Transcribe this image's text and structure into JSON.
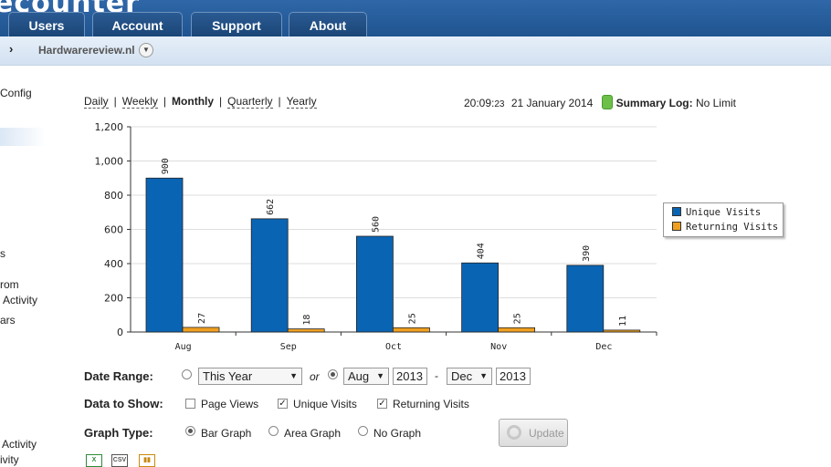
{
  "header": {
    "logo_text": "ecounter",
    "tabs": [
      {
        "label": "Users"
      },
      {
        "label": "Account"
      },
      {
        "label": "Support"
      },
      {
        "label": "About"
      }
    ]
  },
  "breadcrumb": {
    "arrow": "›",
    "site": "Hardwarereview.nl",
    "dropdown_icon": "chevron-down-icon"
  },
  "sidebar": {
    "items": [
      "Config",
      "s",
      "rom",
      "Activity",
      "ars",
      "Activity",
      "ivity"
    ]
  },
  "period": {
    "options": [
      {
        "label": "Daily",
        "active": false
      },
      {
        "label": "Weekly",
        "active": false
      },
      {
        "label": "Monthly",
        "active": true
      },
      {
        "label": "Quarterly",
        "active": false
      },
      {
        "label": "Yearly",
        "active": false
      }
    ],
    "separator": "|"
  },
  "status": {
    "time": "20:09:",
    "seconds": "23",
    "date": "21 January 2014",
    "log_label": "Summary Log:",
    "log_value": "No Limit",
    "log_icon": "database-icon"
  },
  "chart_data": {
    "type": "bar",
    "categories": [
      "Aug",
      "Sep",
      "Oct",
      "Nov",
      "Dec"
    ],
    "series": [
      {
        "name": "Unique Visits",
        "values": [
          900,
          662,
          560,
          404,
          390
        ],
        "color": "#0a64b4"
      },
      {
        "name": "Returning Visits",
        "values": [
          27,
          18,
          25,
          25,
          11
        ],
        "color": "#f0a020"
      }
    ],
    "yticks": [
      "0",
      "200",
      "400",
      "600",
      "800",
      "1,000",
      "1,200"
    ],
    "ylim": [
      0,
      1200
    ],
    "grid": true,
    "legend": "right"
  },
  "controls": {
    "date_range": {
      "label": "Date Range:",
      "preset": "This Year",
      "or": "or",
      "from_month": "Aug",
      "from_year": "2013",
      "dash": "-",
      "to_month": "Dec",
      "to_year": "2013",
      "selected": "custom"
    },
    "data_to_show": {
      "label": "Data to Show:",
      "options": [
        {
          "label": "Page Views",
          "checked": false
        },
        {
          "label": "Unique Visits",
          "checked": true
        },
        {
          "label": "Returning Visits",
          "checked": true
        }
      ]
    },
    "graph_type": {
      "label": "Graph Type:",
      "options": [
        {
          "label": "Bar Graph",
          "selected": true
        },
        {
          "label": "Area Graph",
          "selected": false
        },
        {
          "label": "No Graph",
          "selected": false
        }
      ]
    },
    "update_label": "Update"
  },
  "export": {
    "icons": [
      {
        "name": "excel-export-icon",
        "text": "X",
        "color": "#2e8b3a"
      },
      {
        "name": "csv-export-icon",
        "text": "CSV",
        "color": "#555555"
      },
      {
        "name": "chart-export-icon",
        "text": "▮▮",
        "color": "#c78a10"
      }
    ]
  }
}
